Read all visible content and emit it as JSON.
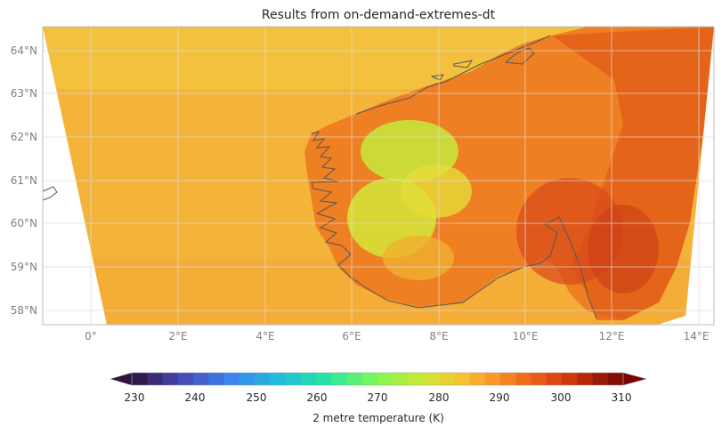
{
  "title": "Results from on-demand-extremes-dt",
  "lon_ticks": [
    "0°",
    "2°E",
    "4°E",
    "6°E",
    "8°E",
    "10°E",
    "12°E",
    "14°E"
  ],
  "lat_ticks": [
    "64°N",
    "63°N",
    "62°N",
    "61°N",
    "60°N",
    "59°N",
    "58°N"
  ],
  "colorbar": {
    "ticks": [
      "230",
      "240",
      "250",
      "260",
      "270",
      "280",
      "290",
      "300",
      "310"
    ],
    "label": "2 metre temperature (K)",
    "min": 230,
    "max": 310,
    "step": 2.5,
    "extend": "both"
  },
  "colors": {
    "sea": "#f4b43a",
    "sea_north": "#f2c43e",
    "coastline": "#555555",
    "frame": "#bbbbbb",
    "grid": "#dddddd"
  }
}
